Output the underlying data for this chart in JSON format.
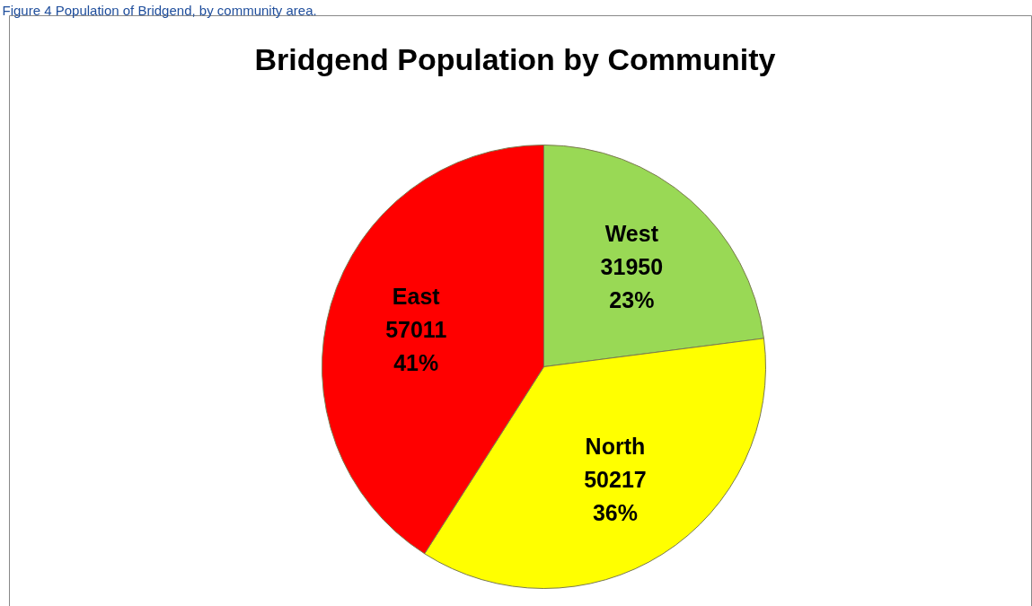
{
  "chart_data": {
    "type": "pie",
    "title": "Bridgend Population by Community",
    "annotations": [
      "Figure 4 Population of Bridgend, by community area."
    ],
    "categories": [
      "West",
      "North",
      "East"
    ],
    "values": [
      31950,
      50217,
      57011
    ],
    "colors": [
      "#99d955",
      "#ffff00",
      "#ff0000"
    ],
    "value_labels": [
      "31950\n23%",
      "50217\n36%",
      "57011\n41%"
    ]
  }
}
